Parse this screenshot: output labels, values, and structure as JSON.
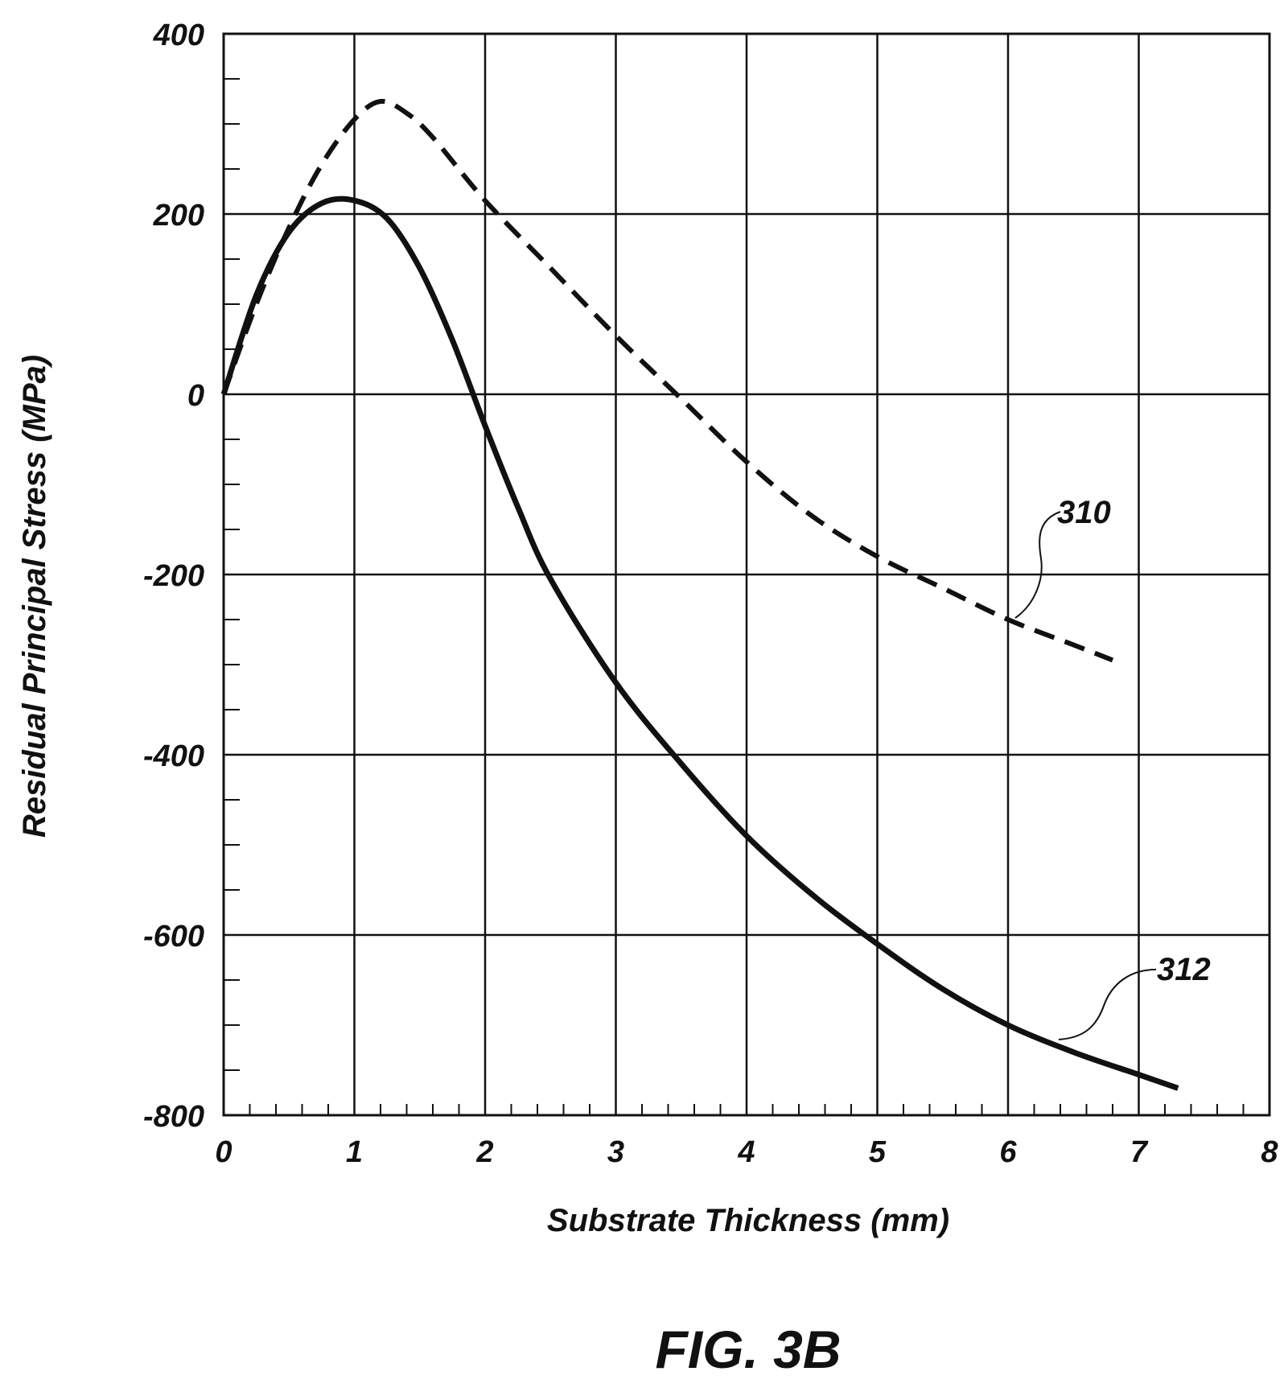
{
  "figure_label": "FIG. 3B",
  "chart_data": {
    "type": "line",
    "title": "",
    "xlabel": "Substrate Thickness (mm)",
    "ylabel": "Residual Principal Stress (MPa)",
    "xlim": [
      0,
      8
    ],
    "ylim": [
      -800,
      400
    ],
    "x_ticks": [
      "0",
      "1",
      "2",
      "3",
      "4",
      "5",
      "6",
      "7",
      "8"
    ],
    "y_ticks": [
      "400",
      "200",
      "0",
      "-200",
      "-400",
      "-600",
      "-800"
    ],
    "grid": true,
    "legend": "none",
    "series": [
      {
        "name": "310",
        "style": "dashed",
        "x": [
          0,
          0.25,
          0.5,
          0.75,
          1.0,
          1.2,
          1.4,
          1.6,
          2.0,
          2.5,
          3.0,
          3.5,
          4.0,
          4.5,
          5.0,
          5.5,
          6.0,
          6.5,
          6.8
        ],
        "y": [
          0,
          100,
          185,
          255,
          305,
          325,
          312,
          285,
          215,
          140,
          65,
          -5,
          -75,
          -135,
          -180,
          -215,
          -250,
          -278,
          -295
        ]
      },
      {
        "name": "312",
        "style": "solid",
        "x": [
          0,
          0.25,
          0.5,
          0.75,
          1.0,
          1.25,
          1.5,
          1.75,
          2.0,
          2.25,
          2.5,
          3.0,
          3.5,
          4.0,
          4.5,
          5.0,
          5.5,
          6.0,
          6.5,
          7.0,
          7.3
        ],
        "y": [
          0,
          110,
          180,
          212,
          215,
          195,
          140,
          60,
          -35,
          -125,
          -205,
          -320,
          -410,
          -490,
          -555,
          -610,
          -660,
          -700,
          -730,
          -755,
          -770
        ]
      }
    ]
  }
}
